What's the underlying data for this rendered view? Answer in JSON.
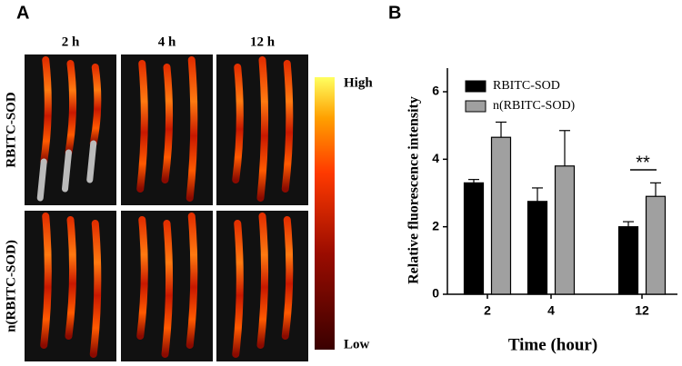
{
  "panel_a": {
    "label": "A",
    "columns": [
      "2 h",
      "4 h",
      "12 h"
    ],
    "rows": [
      "RBITC-SOD",
      "n(RBITC-SOD)"
    ],
    "colorbar_high": "High",
    "colorbar_low": "Low"
  },
  "chart_data": {
    "type": "bar",
    "panel_label": "B",
    "x_label": "Time (hour)",
    "y_label": "Relative fluorescence intensity",
    "categories": [
      "2",
      "4",
      "12"
    ],
    "series": [
      {
        "name": "RBITC-SOD",
        "color": "#000000",
        "values": [
          3.3,
          2.75,
          2.0
        ],
        "errors": [
          0.1,
          0.4,
          0.15
        ]
      },
      {
        "name": "n(RBITC-SOD)",
        "color": "#a0a0a0",
        "values": [
          4.65,
          3.8,
          2.9
        ],
        "errors": [
          0.45,
          1.05,
          0.4
        ]
      }
    ],
    "ylim": [
      0,
      6.7
    ],
    "yticks": [
      0,
      2,
      4,
      6
    ],
    "annotation": "**",
    "legend": "upper left"
  }
}
